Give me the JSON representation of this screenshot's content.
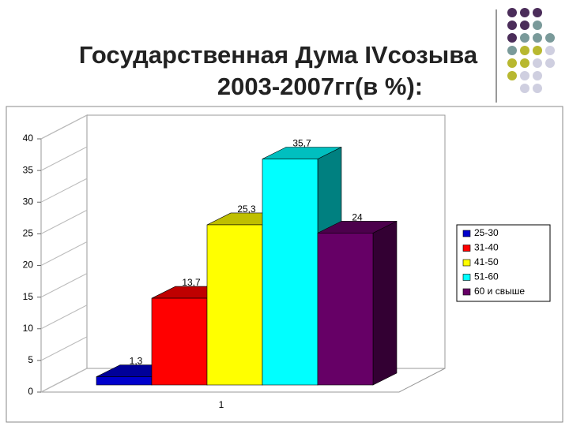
{
  "chart_data": {
    "type": "bar3d",
    "title": "Государственная Дума IVсозыва",
    "subtitle": "2003-2007гг(в %):",
    "categories": [
      "1"
    ],
    "series": [
      {
        "name": "25-30",
        "color": "#0000cc",
        "values": [
          1.3
        ],
        "value_labels": [
          "1,3"
        ]
      },
      {
        "name": "31-40",
        "color": "#ff0000",
        "values": [
          13.7
        ],
        "value_labels": [
          "13,7"
        ]
      },
      {
        "name": "41-50",
        "color": "#ffff00",
        "values": [
          25.3
        ],
        "value_labels": [
          "25,3"
        ]
      },
      {
        "name": "51-60",
        "color": "#00ffff",
        "values": [
          35.7
        ],
        "value_labels": [
          "35,7"
        ]
      },
      {
        "name": "60 и свыше",
        "color": "#660066",
        "values": [
          24
        ],
        "value_labels": [
          "24"
        ]
      }
    ],
    "ylim": [
      0,
      40
    ],
    "yticks": [
      0,
      5,
      10,
      15,
      20,
      25,
      30,
      35,
      40
    ],
    "legend": "right"
  }
}
